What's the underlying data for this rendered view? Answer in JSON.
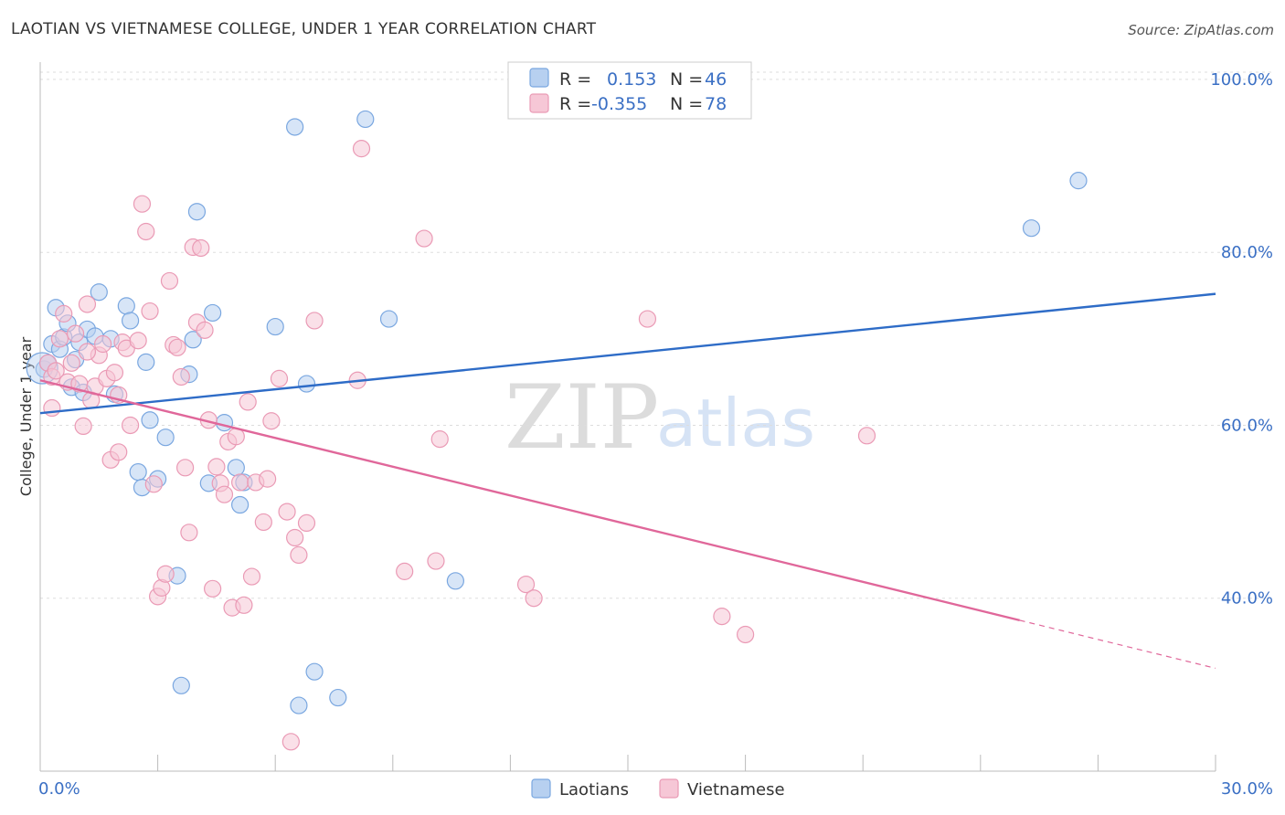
{
  "title": "LAOTIAN VS VIETNAMESE COLLEGE, UNDER 1 YEAR CORRELATION CHART",
  "source": "Source: ZipAtlas.com",
  "watermark": {
    "zip": "ZIP",
    "atlas": "atlas"
  },
  "legend": {
    "rows": [
      {
        "r_label": "R = ",
        "r_value": "0.153",
        "n_label": "N = ",
        "n_value": "46"
      },
      {
        "r_label": "R = ",
        "r_value": "-0.355",
        "n_label": "N = ",
        "n_value": "78"
      }
    ]
  },
  "chart_data": {
    "type": "scatter",
    "title": "LAOTIAN VS VIETNAMESE COLLEGE, UNDER 1 YEAR CORRELATION CHART",
    "xlabel": "",
    "ylabel": "College, Under 1 year",
    "xlim": [
      0,
      30
    ],
    "ylim": [
      20,
      102
    ],
    "x_tick_labels": [
      {
        "value": 0,
        "label": "0.0%"
      },
      {
        "value": 30,
        "label": "30.0%"
      }
    ],
    "y_tick_labels": [
      {
        "value": 40,
        "label": "40.0%"
      },
      {
        "value": 60,
        "label": "60.0%"
      },
      {
        "value": 80,
        "label": "80.0%"
      },
      {
        "value": 100,
        "label": "100.0%"
      }
    ],
    "legend_position": "top-center",
    "series": [
      {
        "name": "Laotians",
        "color": "#7aa7e0",
        "fill": "#b7d0f0",
        "trend_color": "#2e6cc7",
        "trend": {
          "x0": 0,
          "y0": 61.4,
          "x1": 30,
          "y1": 75.2,
          "dash_from": null
        },
        "points": [
          [
            0.1,
            66.5
          ],
          [
            0.2,
            67.2
          ],
          [
            0.3,
            69.4
          ],
          [
            0.4,
            73.6
          ],
          [
            0.5,
            68.8
          ],
          [
            0.6,
            70.2
          ],
          [
            0.7,
            71.8
          ],
          [
            0.8,
            64.4
          ],
          [
            0.9,
            67.6
          ],
          [
            1.0,
            69.6
          ],
          [
            1.1,
            63.8
          ],
          [
            1.2,
            71.1
          ],
          [
            1.4,
            70.3
          ],
          [
            1.5,
            75.4
          ],
          [
            1.8,
            70.0
          ],
          [
            1.9,
            63.6
          ],
          [
            2.2,
            73.8
          ],
          [
            2.3,
            72.1
          ],
          [
            2.5,
            54.6
          ],
          [
            2.6,
            52.8
          ],
          [
            2.7,
            67.3
          ],
          [
            2.8,
            60.6
          ],
          [
            3.0,
            53.8
          ],
          [
            3.2,
            58.6
          ],
          [
            3.5,
            42.6
          ],
          [
            3.6,
            29.9
          ],
          [
            3.8,
            65.9
          ],
          [
            3.9,
            69.9
          ],
          [
            4.0,
            84.7
          ],
          [
            4.3,
            53.3
          ],
          [
            4.4,
            73.0
          ],
          [
            4.7,
            60.3
          ],
          [
            5.0,
            55.1
          ],
          [
            5.1,
            50.8
          ],
          [
            5.2,
            53.4
          ],
          [
            6.0,
            71.4
          ],
          [
            6.5,
            94.5
          ],
          [
            6.8,
            64.8
          ],
          [
            7.0,
            31.5
          ],
          [
            6.6,
            27.6
          ],
          [
            7.6,
            28.5
          ],
          [
            8.3,
            95.4
          ],
          [
            8.9,
            72.3
          ],
          [
            10.6,
            42.0
          ],
          [
            25.3,
            82.8
          ],
          [
            26.5,
            88.3
          ]
        ]
      },
      {
        "name": "Vietnamese",
        "color": "#ea9ab5",
        "fill": "#f6c7d6",
        "trend_color": "#e0679a",
        "trend": {
          "x0": 0,
          "y0": 65.2,
          "x1": 30,
          "y1": 31.9,
          "dash_from": 25.0
        },
        "points": [
          [
            0.2,
            67.2
          ],
          [
            0.3,
            65.6
          ],
          [
            0.4,
            66.3
          ],
          [
            0.5,
            70.0
          ],
          [
            0.6,
            72.9
          ],
          [
            0.7,
            65.0
          ],
          [
            0.8,
            67.2
          ],
          [
            0.9,
            70.6
          ],
          [
            1.0,
            64.8
          ],
          [
            1.1,
            59.9
          ],
          [
            1.2,
            74.0
          ],
          [
            1.3,
            62.9
          ],
          [
            1.4,
            64.5
          ],
          [
            1.5,
            68.1
          ],
          [
            1.6,
            69.4
          ],
          [
            1.7,
            65.4
          ],
          [
            1.8,
            56.0
          ],
          [
            1.9,
            66.1
          ],
          [
            2.0,
            56.9
          ],
          [
            2.1,
            69.6
          ],
          [
            2.2,
            68.9
          ],
          [
            2.3,
            60.0
          ],
          [
            2.5,
            69.8
          ],
          [
            2.6,
            85.6
          ],
          [
            2.7,
            82.4
          ],
          [
            2.8,
            73.2
          ],
          [
            2.9,
            53.2
          ],
          [
            3.0,
            40.2
          ],
          [
            3.1,
            41.2
          ],
          [
            3.2,
            42.8
          ],
          [
            3.3,
            76.7
          ],
          [
            3.4,
            69.3
          ],
          [
            3.5,
            69.0
          ],
          [
            3.6,
            65.6
          ],
          [
            3.7,
            55.1
          ],
          [
            3.8,
            47.6
          ],
          [
            3.9,
            80.6
          ],
          [
            4.0,
            71.9
          ],
          [
            4.1,
            80.5
          ],
          [
            4.2,
            71.0
          ],
          [
            4.3,
            60.6
          ],
          [
            4.4,
            41.1
          ],
          [
            4.5,
            55.2
          ],
          [
            4.6,
            53.3
          ],
          [
            4.7,
            52.0
          ],
          [
            4.8,
            58.1
          ],
          [
            4.9,
            38.9
          ],
          [
            5.0,
            58.7
          ],
          [
            5.1,
            53.4
          ],
          [
            5.2,
            39.2
          ],
          [
            5.3,
            62.7
          ],
          [
            5.4,
            42.5
          ],
          [
            5.5,
            53.4
          ],
          [
            5.7,
            48.8
          ],
          [
            5.8,
            53.8
          ],
          [
            5.9,
            60.5
          ],
          [
            6.1,
            65.4
          ],
          [
            6.3,
            50.0
          ],
          [
            6.4,
            23.4
          ],
          [
            6.5,
            47.0
          ],
          [
            6.6,
            45.0
          ],
          [
            6.8,
            48.7
          ],
          [
            7.0,
            72.1
          ],
          [
            8.1,
            65.2
          ],
          [
            8.2,
            92.0
          ],
          [
            9.3,
            43.1
          ],
          [
            9.8,
            81.6
          ],
          [
            10.1,
            44.3
          ],
          [
            10.2,
            58.4
          ],
          [
            12.4,
            41.6
          ],
          [
            12.6,
            40.0
          ],
          [
            15.5,
            72.3
          ],
          [
            17.4,
            37.9
          ],
          [
            18.0,
            35.8
          ],
          [
            21.1,
            58.8
          ],
          [
            0.3,
            62.0
          ],
          [
            1.2,
            68.5
          ],
          [
            2.0,
            63.5
          ]
        ]
      }
    ]
  }
}
